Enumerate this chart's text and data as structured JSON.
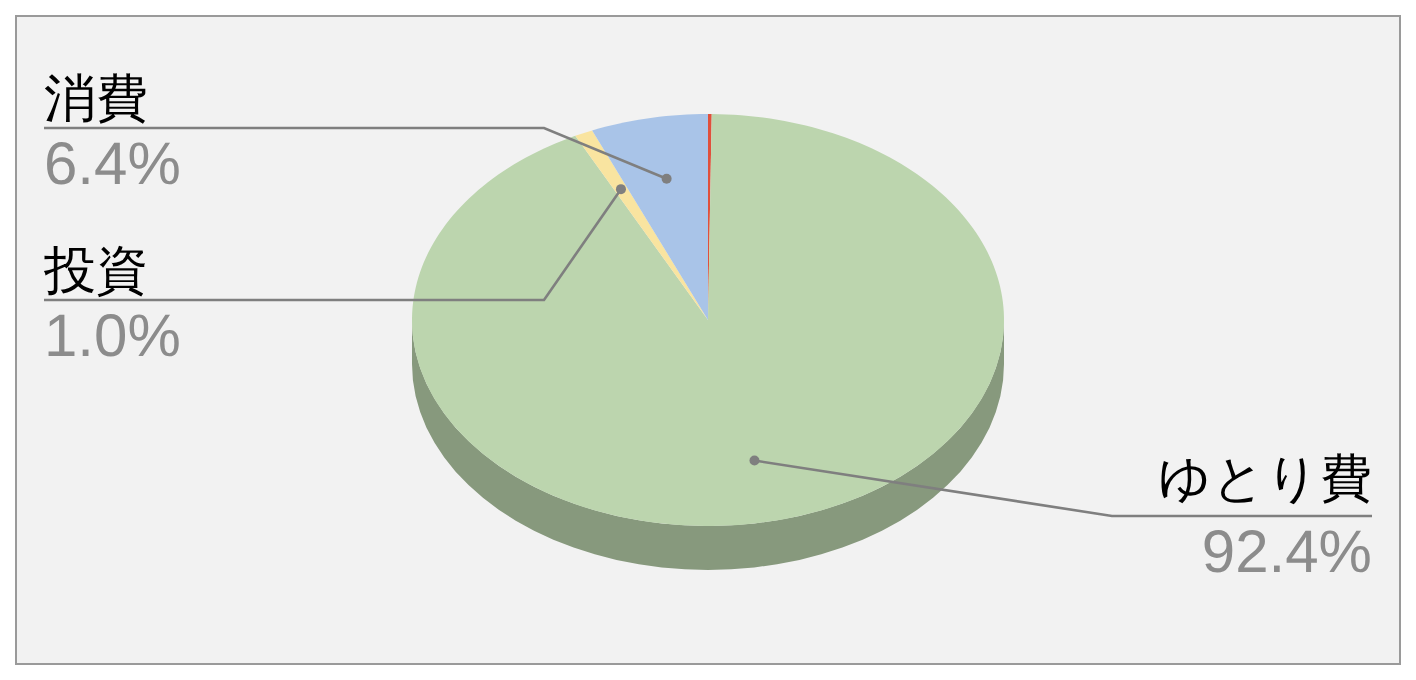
{
  "chart_data": {
    "type": "pie",
    "categories": [
      null,
      "ゆとり費",
      "投資",
      "消費"
    ],
    "values": [
      0.2,
      92.4,
      1.0,
      6.4
    ],
    "value_labels": [
      null,
      "92.4%",
      "1.0%",
      "6.4%"
    ],
    "colors": [
      "#e0503c",
      "#bcd5ae",
      "#f9e4a0",
      "#a9c4e8"
    ]
  }
}
